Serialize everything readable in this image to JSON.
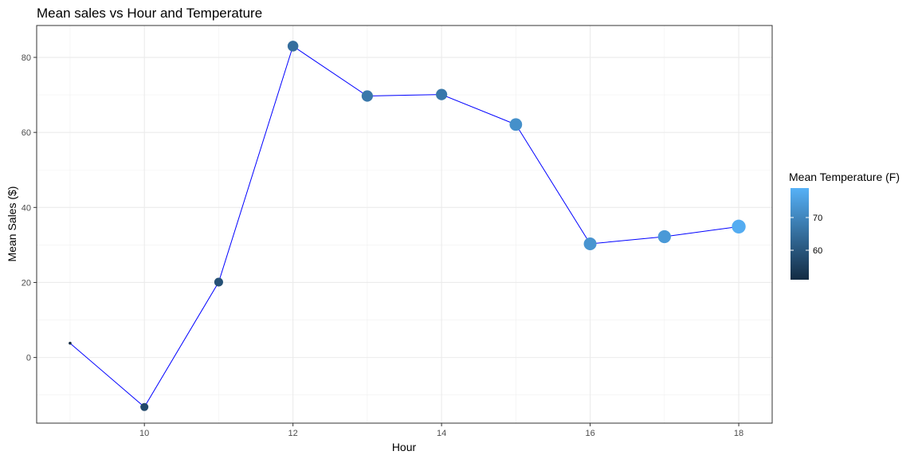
{
  "chart_data": {
    "type": "line",
    "title": "Mean sales vs Hour and Temperature",
    "xlabel": "Hour",
    "ylabel": "Mean Sales ($)",
    "xlim": [
      8.55,
      18.45
    ],
    "ylim": [
      -17.5,
      88.5
    ],
    "x_ticks": [
      10,
      12,
      14,
      16,
      18
    ],
    "y_ticks": [
      0,
      20,
      40,
      60,
      80
    ],
    "grid": true,
    "line_color": "#0000ff",
    "points": [
      {
        "x": 9,
        "y": 3.8,
        "temp": 51
      },
      {
        "x": 10,
        "y": -13.2,
        "temp": 57
      },
      {
        "x": 11,
        "y": 20.1,
        "temp": 59
      },
      {
        "x": 12,
        "y": 83.0,
        "temp": 65
      },
      {
        "x": 13,
        "y": 69.7,
        "temp": 67
      },
      {
        "x": 14,
        "y": 70.1,
        "temp": 67
      },
      {
        "x": 15,
        "y": 62.1,
        "temp": 72
      },
      {
        "x": 16,
        "y": 30.3,
        "temp": 73
      },
      {
        "x": 17,
        "y": 32.2,
        "temp": 74
      },
      {
        "x": 18,
        "y": 34.9,
        "temp": 78
      }
    ],
    "legend": {
      "title": "Mean Temperature (F)",
      "placement": "right",
      "ticks": [
        60,
        70
      ],
      "range": [
        51,
        79
      ],
      "color_low": "#132b43",
      "color_high": "#56b1f7"
    }
  }
}
